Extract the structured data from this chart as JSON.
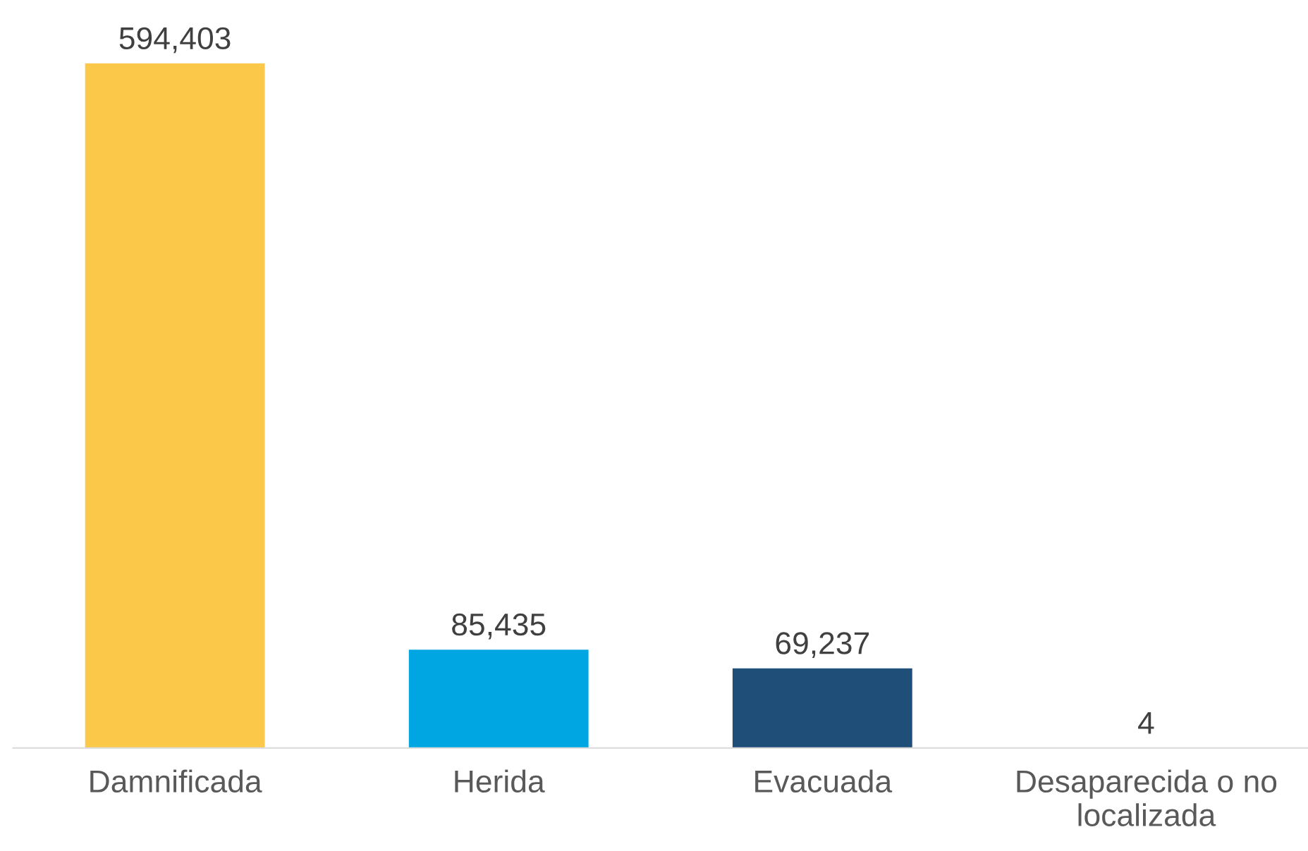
{
  "chart_data": {
    "type": "bar",
    "categories": [
      "Damnificada",
      "Herida",
      "Evacuada",
      "Desaparecida o no\nlocalizada"
    ],
    "values": [
      594403,
      85435,
      69237,
      4
    ],
    "colors": [
      "#fcc84a",
      "#00a6e2",
      "#1f4e79",
      "#1f4e79"
    ],
    "value_labels": [
      "594,403",
      "85,435",
      "69,237",
      "4"
    ],
    "grid": false,
    "legend": false
  }
}
